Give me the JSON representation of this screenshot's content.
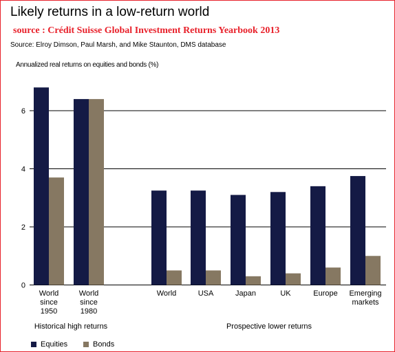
{
  "header": {
    "title": "Likely returns in a low-return world",
    "source": "source : Crédit Suisse Global Investment Returns Yearbook 2013",
    "credit": "Source: Elroy Dimson, Paul Marsh, and Mike Staunton, DMS database"
  },
  "colors": {
    "equities": "#141a45",
    "bonds": "#867862",
    "frame": "#e8202a"
  },
  "chart_data": {
    "type": "bar",
    "ylabel": "Annualized real returns on equities and bonds (%)",
    "ylim": [
      0,
      7
    ],
    "yticks": [
      0,
      2,
      4,
      6
    ],
    "grid": true,
    "legend_position": "bottom-left",
    "categories": [
      [
        "World",
        "since",
        "1950"
      ],
      [
        "World",
        "since",
        "1980"
      ],
      [
        "World"
      ],
      [
        "USA"
      ],
      [
        "Japan"
      ],
      [
        "UK"
      ],
      [
        "Europe"
      ],
      [
        "Emerging",
        "markets"
      ]
    ],
    "groups": [
      {
        "label": "Historical high returns",
        "categories": [
          0,
          1
        ]
      },
      {
        "label": "Prospective lower returns",
        "categories": [
          2,
          3,
          4,
          5,
          6,
          7
        ]
      }
    ],
    "series": [
      {
        "name": "Equities",
        "values": [
          6.8,
          6.4,
          3.25,
          3.25,
          3.1,
          3.2,
          3.4,
          3.75
        ]
      },
      {
        "name": "Bonds",
        "values": [
          3.7,
          6.4,
          0.5,
          0.5,
          0.3,
          0.4,
          0.6,
          1.0
        ]
      }
    ]
  }
}
